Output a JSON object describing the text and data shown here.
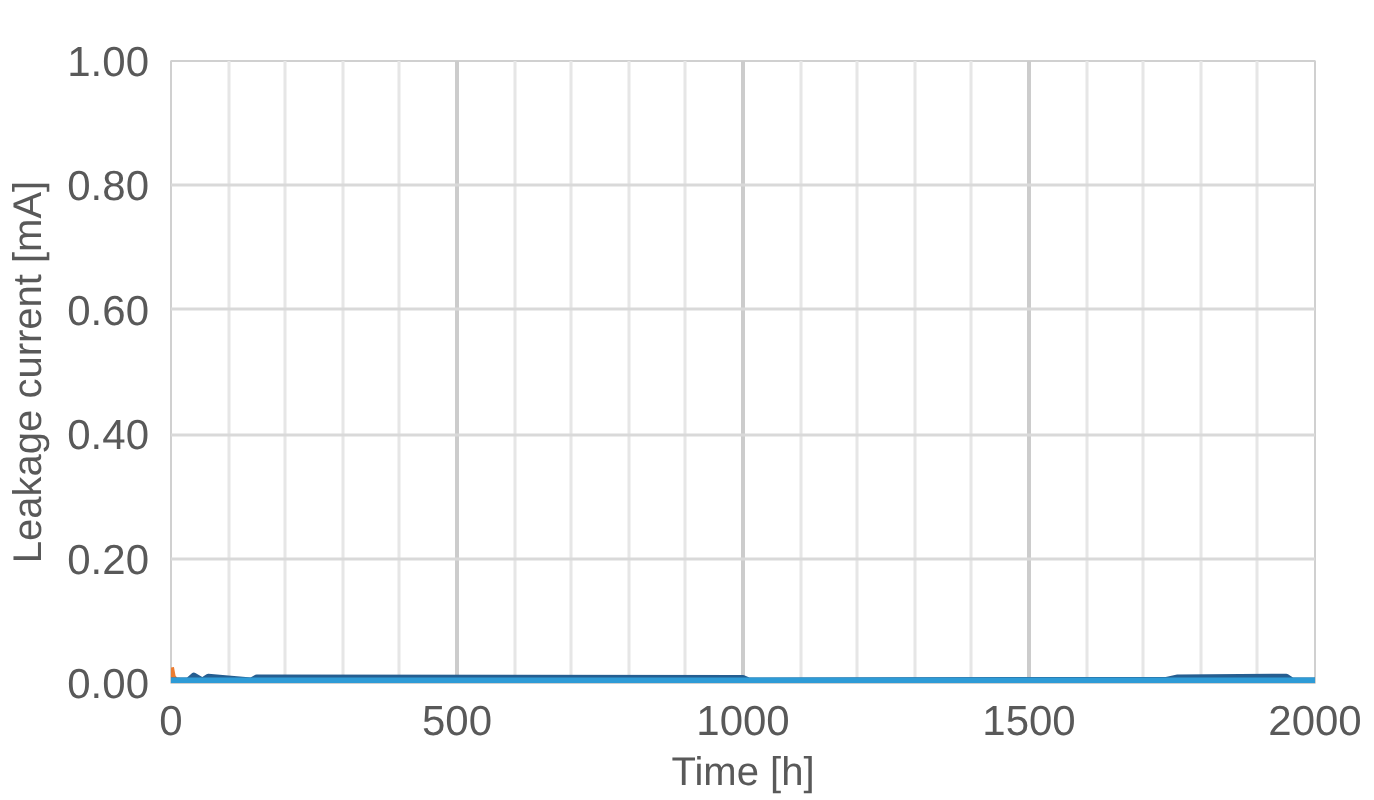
{
  "chart_data": {
    "type": "line",
    "xlabel": "Time [h]",
    "ylabel": "Leakage current [mA]",
    "xlim": [
      0,
      2000
    ],
    "xticks": [
      0,
      500,
      1000,
      1500,
      2000
    ],
    "ylim": [
      0,
      1
    ],
    "yticks": [
      {
        "value": 0,
        "label": "0.00"
      },
      {
        "value": 0.2,
        "label": "0.20"
      },
      {
        "value": 0.4,
        "label": "0.40"
      },
      {
        "value": 0.6,
        "label": "0.60"
      },
      {
        "value": 0.8,
        "label": "0.80"
      },
      {
        "value": 1,
        "label": "1.00"
      }
    ],
    "grid": true,
    "series": [
      {
        "color": "#ed7d31",
        "x": [
          0,
          3,
          8,
          20
        ],
        "values": [
          0.025,
          0.01,
          0.004,
          0.003
        ]
      },
      {
        "color": "#255e91",
        "x": [
          0,
          30,
          40,
          55,
          65,
          140,
          150,
          1000,
          1010,
          1740,
          1760,
          1950,
          1960,
          2000
        ],
        "values": [
          0.004,
          0.004,
          0.012,
          0.004,
          0.01,
          0.004,
          0.009,
          0.008,
          0.004,
          0.005,
          0.009,
          0.01,
          0.004,
          0.004
        ]
      },
      {
        "color": "#2e9bd6",
        "x": [
          0,
          500,
          1000,
          1500,
          2000
        ],
        "values": [
          0.004,
          0.004,
          0.004,
          0.004,
          0.004
        ]
      }
    ]
  }
}
